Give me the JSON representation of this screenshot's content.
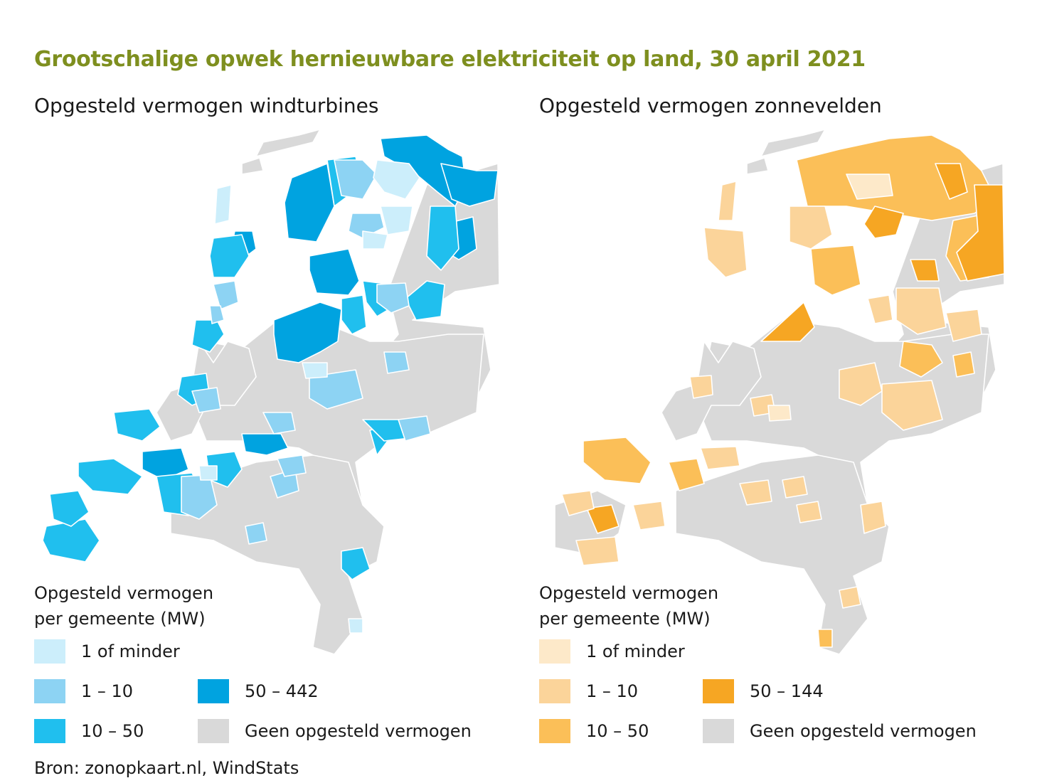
{
  "title": "Grootschalige opwek hernieuwbare elektriciteit op land, 30 april 2021",
  "source": "Bron: zonopkaart.nl, WindStats",
  "maps": {
    "wind": {
      "subtitle": "Opgesteld vermogen windturbines",
      "legend_title_line1": "Opgesteld vermogen",
      "legend_title_line2": "per gemeente (MW)",
      "legend": [
        {
          "label": "1 of minder",
          "color": "#cceefb"
        },
        {
          "label": "1 – 10",
          "color": "#8dd3f3"
        },
        {
          "label": "10 – 50",
          "color": "#20bfee"
        },
        {
          "label": "50 – 442",
          "color": "#00a3e0"
        },
        {
          "label": "Geen opgesteld vermogen",
          "color": "#d9d9d9"
        }
      ]
    },
    "sun": {
      "subtitle": "Opgesteld vermogen zonnevelden",
      "legend_title_line1": "Opgesteld vermogen",
      "legend_title_line2": "per gemeente (MW)",
      "legend": [
        {
          "label": "1 of minder",
          "color": "#fde9c9"
        },
        {
          "label": "1 – 10",
          "color": "#fbd49a"
        },
        {
          "label": "10 – 50",
          "color": "#fbbf58"
        },
        {
          "label": "50 – 144",
          "color": "#f6a623"
        },
        {
          "label": "Geen opgesteld vermogen",
          "color": "#d9d9d9"
        }
      ]
    }
  }
}
